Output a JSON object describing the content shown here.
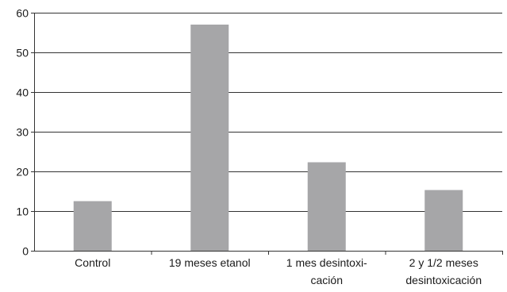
{
  "chart_data": {
    "type": "bar",
    "title": "",
    "xlabel": "",
    "ylabel": "",
    "ylim": [
      0,
      60
    ],
    "yticks": [
      0,
      10,
      20,
      30,
      40,
      50,
      60
    ],
    "grid": true,
    "categories": [
      [
        "Control"
      ],
      [
        "19 meses etanol"
      ],
      [
        "1 mes desintoxi-",
        "cación"
      ],
      [
        "2 y 1/2 meses",
        "desintoxicación"
      ]
    ],
    "values": [
      12.5,
      57,
      22.3,
      15.3
    ],
    "colors": {
      "bar": "#a6a6a8",
      "axis": "#333333",
      "grid": "#333333"
    }
  }
}
